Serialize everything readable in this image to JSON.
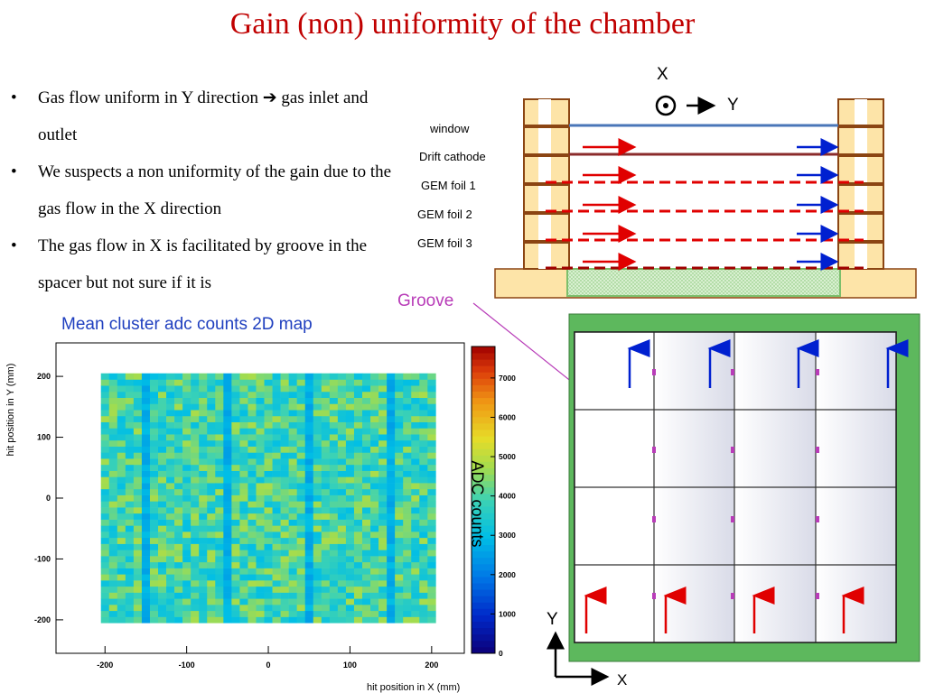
{
  "title": "Gain (non) uniformity of the chamber",
  "bullets": [
    {
      "text": "Gas flow uniform in Y direction ",
      "arrow": "➔",
      "tail": " gas inlet and outlet"
    },
    {
      "text": "We suspects a non uniformity of the gain due to the gas flow in the X direction",
      "arrow": "",
      "tail": ""
    },
    {
      "text": "The gas flow in X is facilitated by groove in the spacer but not sure if it is",
      "arrow": "",
      "tail": ""
    }
  ],
  "bullet_symbol": "•",
  "cross_section": {
    "axis_x": "X",
    "axis_y": "Y",
    "layers": [
      "window",
      "Drift cathode",
      "GEM foil 1",
      "GEM foil 2",
      "GEM foil 3"
    ]
  },
  "groove_label": "Groove",
  "top_view": {
    "axis_x": "X",
    "axis_y": "Y"
  },
  "chart_data": {
    "type": "heatmap",
    "title": "Mean cluster adc counts  2D map",
    "xlabel": "hit position in X (mm)",
    "ylabel": "hit position in Y (mm)",
    "colorbar_label": "ADC counts",
    "xlim": [
      -260,
      240
    ],
    "ylim": [
      -255,
      255
    ],
    "x_ticks": [
      -200,
      -100,
      0,
      100,
      200
    ],
    "y_ticks": [
      -200,
      -100,
      0,
      100,
      200
    ],
    "x_tick_labels": [
      "-200",
      "-100",
      "0",
      "100",
      "200"
    ],
    "y_tick_labels": [
      "-200",
      "-100",
      "0",
      "100",
      "200"
    ],
    "colorbar_range": [
      0,
      7800
    ],
    "colorbar_ticks": [
      0,
      1000,
      2000,
      3000,
      4000,
      5000,
      6000,
      7000
    ],
    "colorbar_tick_labels": [
      "0",
      "1000",
      "2000",
      "3000",
      "4000",
      "5000",
      "6000",
      "7000"
    ],
    "data_extent_x": [
      -205,
      205
    ],
    "data_extent_y": [
      -205,
      205
    ],
    "grid_columns": 41,
    "grid_rows": 41,
    "typical_value_range": [
      3000,
      4800
    ],
    "low_columns_x_mm": [
      -150,
      -50,
      50,
      150
    ],
    "high_cells": [
      {
        "x": -95,
        "y": -195,
        "value": 7500
      },
      {
        "x": -20,
        "y": -195,
        "value": 7400
      },
      {
        "x": 40,
        "y": -195,
        "value": 7000
      },
      {
        "x": -90,
        "y": -155,
        "value": 5800
      },
      {
        "x": 30,
        "y": -195,
        "value": 6500
      }
    ]
  },
  "colors": {
    "title": "#c00000",
    "map_title": "#1f3fbf",
    "groove": "#b83cb8",
    "spacer": "#fde4a8",
    "spacer_line": "#8b4513",
    "red_arrow": "#e00000",
    "blue_arrow": "#0020d0",
    "frame_green": "#5db85d"
  }
}
